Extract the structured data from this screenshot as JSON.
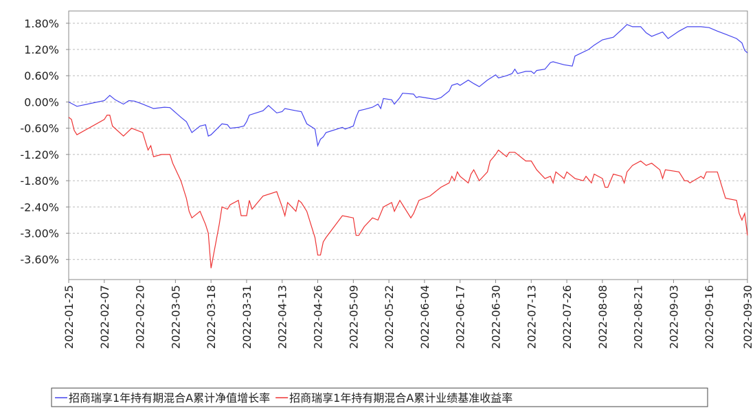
{
  "chart_data": {
    "type": "line",
    "xlim": [
      "2022-01-25",
      "2022-09-30"
    ],
    "xticks": [
      "2022-01-25",
      "2022-02-07",
      "2022-02-20",
      "2022-03-05",
      "2022-03-18",
      "2022-03-31",
      "2022-04-13",
      "2022-04-26",
      "2022-05-09",
      "2022-05-22",
      "2022-06-04",
      "2022-06-17",
      "2022-06-30",
      "2022-07-13",
      "2022-07-26",
      "2022-08-08",
      "2022-08-21",
      "2022-09-03",
      "2022-09-16",
      "2022-09-30"
    ],
    "ylim": [
      -4.06,
      2.08
    ],
    "yticks": [
      {
        "value": 1.8,
        "label": "1.80%"
      },
      {
        "value": 1.2,
        "label": "1.20%"
      },
      {
        "value": 0.6,
        "label": "0.60%"
      },
      {
        "value": 0,
        "label": "0.00%"
      },
      {
        "value": -0.6,
        "label": "-0.60%"
      },
      {
        "value": -1.2,
        "label": "-1.20%"
      },
      {
        "value": -1.8,
        "label": "-1.80%"
      },
      {
        "value": -2.4,
        "label": "-2.40%"
      },
      {
        "value": -3.0,
        "label": "-3.00%"
      },
      {
        "value": -3.6,
        "label": "-3.60%"
      }
    ],
    "grid": true,
    "legend": "bottom",
    "series": [
      {
        "name": "招商瑞享1年持有期混合A累计净值增长率",
        "color": "#4444ee",
        "x": [
          "2022-01-25",
          "2022-01-28",
          "2022-02-07",
          "2022-02-09",
          "2022-02-11",
          "2022-02-14",
          "2022-02-16",
          "2022-02-18",
          "2022-02-21",
          "2022-02-23",
          "2022-02-25",
          "2022-03-01",
          "2022-03-03",
          "2022-03-07",
          "2022-03-09",
          "2022-03-11",
          "2022-03-14",
          "2022-03-16",
          "2022-03-17",
          "2022-03-18",
          "2022-03-22",
          "2022-03-24",
          "2022-03-25",
          "2022-03-28",
          "2022-03-30",
          "2022-03-31",
          "2022-04-01",
          "2022-04-06",
          "2022-04-08",
          "2022-04-11",
          "2022-04-13",
          "2022-04-14",
          "2022-04-18",
          "2022-04-20",
          "2022-04-22",
          "2022-04-25",
          "2022-04-26",
          "2022-04-27",
          "2022-04-28",
          "2022-04-29",
          "2022-05-05",
          "2022-05-06",
          "2022-05-09",
          "2022-05-10",
          "2022-05-11",
          "2022-05-13",
          "2022-05-16",
          "2022-05-18",
          "2022-05-19",
          "2022-05-20",
          "2022-05-23",
          "2022-05-24",
          "2022-05-26",
          "2022-05-27",
          "2022-05-31",
          "2022-06-01",
          "2022-06-02",
          "2022-06-06",
          "2022-06-08",
          "2022-06-10",
          "2022-06-13",
          "2022-06-14",
          "2022-06-16",
          "2022-06-17",
          "2022-06-20",
          "2022-06-22",
          "2022-06-24",
          "2022-06-27",
          "2022-06-29",
          "2022-06-30",
          "2022-07-01",
          "2022-07-04",
          "2022-07-06",
          "2022-07-07",
          "2022-07-08",
          "2022-07-11",
          "2022-07-13",
          "2022-07-14",
          "2022-07-15",
          "2022-07-18",
          "2022-07-20",
          "2022-07-21",
          "2022-07-22",
          "2022-07-25",
          "2022-07-28",
          "2022-07-29",
          "2022-08-03",
          "2022-08-05",
          "2022-08-08",
          "2022-08-12",
          "2022-08-15",
          "2022-08-17",
          "2022-08-19",
          "2022-08-22",
          "2022-08-24",
          "2022-08-26",
          "2022-08-30",
          "2022-09-01",
          "2022-09-05",
          "2022-09-08",
          "2022-09-13",
          "2022-09-16",
          "2022-09-19",
          "2022-09-22",
          "2022-09-26",
          "2022-09-28",
          "2022-09-29",
          "2022-09-30"
        ],
        "values": [
          0.0,
          -0.1,
          0.03,
          0.15,
          0.05,
          -0.05,
          0.03,
          0.02,
          -0.05,
          -0.1,
          -0.15,
          -0.12,
          -0.13,
          -0.35,
          -0.45,
          -0.7,
          -0.55,
          -0.52,
          -0.78,
          -0.75,
          -0.5,
          -0.52,
          -0.6,
          -0.58,
          -0.55,
          -0.45,
          -0.3,
          -0.2,
          -0.08,
          -0.25,
          -0.22,
          -0.15,
          -0.2,
          -0.22,
          -0.5,
          -0.62,
          -1.0,
          -0.85,
          -0.8,
          -0.7,
          -0.58,
          -0.62,
          -0.55,
          -0.35,
          -0.2,
          -0.17,
          -0.12,
          -0.05,
          -0.15,
          0.08,
          0.05,
          -0.05,
          0.1,
          0.2,
          0.18,
          0.1,
          0.12,
          0.08,
          0.06,
          0.1,
          0.25,
          0.38,
          0.42,
          0.38,
          0.5,
          0.42,
          0.35,
          0.5,
          0.58,
          0.62,
          0.55,
          0.6,
          0.65,
          0.75,
          0.65,
          0.7,
          0.7,
          0.65,
          0.72,
          0.75,
          0.9,
          0.92,
          0.9,
          0.85,
          0.82,
          1.05,
          1.2,
          1.3,
          1.42,
          1.48,
          1.65,
          1.77,
          1.72,
          1.72,
          1.58,
          1.5,
          1.6,
          1.45,
          1.62,
          1.72,
          1.72,
          1.7,
          1.62,
          1.55,
          1.45,
          1.35,
          1.18,
          1.12
        ]
      },
      {
        "name": "招商瑞享1年持有期混合A累计业绩基准收益率",
        "color": "#ee3333",
        "x": [
          "2022-01-25",
          "2022-01-26",
          "2022-01-27",
          "2022-01-28",
          "2022-02-07",
          "2022-02-08",
          "2022-02-09",
          "2022-02-10",
          "2022-02-14",
          "2022-02-17",
          "2022-02-21",
          "2022-02-23",
          "2022-02-24",
          "2022-02-25",
          "2022-02-28",
          "2022-03-03",
          "2022-03-04",
          "2022-03-07",
          "2022-03-09",
          "2022-03-10",
          "2022-03-11",
          "2022-03-14",
          "2022-03-16",
          "2022-03-17",
          "2022-03-18",
          "2022-03-21",
          "2022-03-22",
          "2022-03-24",
          "2022-03-25",
          "2022-03-28",
          "2022-03-29",
          "2022-03-31",
          "2022-04-01",
          "2022-04-02",
          "2022-04-06",
          "2022-04-11",
          "2022-04-13",
          "2022-04-14",
          "2022-04-15",
          "2022-04-18",
          "2022-04-19",
          "2022-04-20",
          "2022-04-22",
          "2022-04-25",
          "2022-04-26",
          "2022-04-27",
          "2022-04-28",
          "2022-04-29",
          "2022-05-05",
          "2022-05-09",
          "2022-05-10",
          "2022-05-11",
          "2022-05-13",
          "2022-05-16",
          "2022-05-18",
          "2022-05-20",
          "2022-05-23",
          "2022-05-24",
          "2022-05-26",
          "2022-05-27",
          "2022-05-30",
          "2022-05-31",
          "2022-06-02",
          "2022-06-06",
          "2022-06-08",
          "2022-06-10",
          "2022-06-13",
          "2022-06-14",
          "2022-06-15",
          "2022-06-16",
          "2022-06-17",
          "2022-06-20",
          "2022-06-21",
          "2022-06-22",
          "2022-06-24",
          "2022-06-27",
          "2022-06-28",
          "2022-06-30",
          "2022-07-01",
          "2022-07-04",
          "2022-07-05",
          "2022-07-07",
          "2022-07-11",
          "2022-07-13",
          "2022-07-15",
          "2022-07-18",
          "2022-07-20",
          "2022-07-21",
          "2022-07-22",
          "2022-07-25",
          "2022-07-26",
          "2022-07-28",
          "2022-07-29",
          "2022-08-01",
          "2022-08-02",
          "2022-08-04",
          "2022-08-05",
          "2022-08-08",
          "2022-08-09",
          "2022-08-10",
          "2022-08-12",
          "2022-08-15",
          "2022-08-16",
          "2022-08-17",
          "2022-08-19",
          "2022-08-22",
          "2022-08-24",
          "2022-08-26",
          "2022-08-29",
          "2022-08-30",
          "2022-08-31",
          "2022-09-05",
          "2022-09-07",
          "2022-09-08",
          "2022-09-09",
          "2022-09-13",
          "2022-09-14",
          "2022-09-15",
          "2022-09-19",
          "2022-09-20",
          "2022-09-21",
          "2022-09-22",
          "2022-09-26",
          "2022-09-27",
          "2022-09-28",
          "2022-09-29",
          "2022-09-30"
        ],
        "values": [
          -0.35,
          -0.4,
          -0.65,
          -0.75,
          -0.4,
          -0.3,
          -0.3,
          -0.55,
          -0.78,
          -0.6,
          -0.7,
          -1.1,
          -1.0,
          -1.25,
          -1.2,
          -1.2,
          -1.4,
          -1.8,
          -2.2,
          -2.5,
          -2.65,
          -2.5,
          -2.8,
          -3.0,
          -3.8,
          -2.8,
          -2.4,
          -2.45,
          -2.35,
          -2.25,
          -2.6,
          -2.6,
          -2.25,
          -2.45,
          -2.15,
          -2.05,
          -2.4,
          -2.6,
          -2.3,
          -2.5,
          -2.25,
          -2.3,
          -2.5,
          -3.1,
          -3.5,
          -3.5,
          -3.2,
          -3.1,
          -2.6,
          -2.65,
          -3.05,
          -3.05,
          -2.85,
          -2.65,
          -2.7,
          -2.4,
          -2.3,
          -2.5,
          -2.25,
          -2.35,
          -2.65,
          -2.55,
          -2.25,
          -2.15,
          -2.05,
          -1.95,
          -1.85,
          -1.7,
          -1.8,
          -1.6,
          -1.7,
          -1.85,
          -1.65,
          -1.55,
          -1.8,
          -1.6,
          -1.35,
          -1.2,
          -1.1,
          -1.25,
          -1.15,
          -1.15,
          -1.35,
          -1.35,
          -1.55,
          -1.75,
          -1.7,
          -1.85,
          -1.6,
          -1.75,
          -1.6,
          -1.7,
          -1.75,
          -1.8,
          -1.7,
          -1.85,
          -1.65,
          -1.75,
          -1.95,
          -1.95,
          -1.65,
          -1.7,
          -1.85,
          -1.6,
          -1.45,
          -1.35,
          -1.45,
          -1.4,
          -1.55,
          -1.75,
          -1.55,
          -1.6,
          -1.8,
          -1.8,
          -1.85,
          -1.7,
          -1.75,
          -1.6,
          -1.6,
          -1.8,
          -2.0,
          -2.2,
          -2.25,
          -2.55,
          -2.7,
          -2.55,
          -3.05
        ]
      }
    ]
  }
}
